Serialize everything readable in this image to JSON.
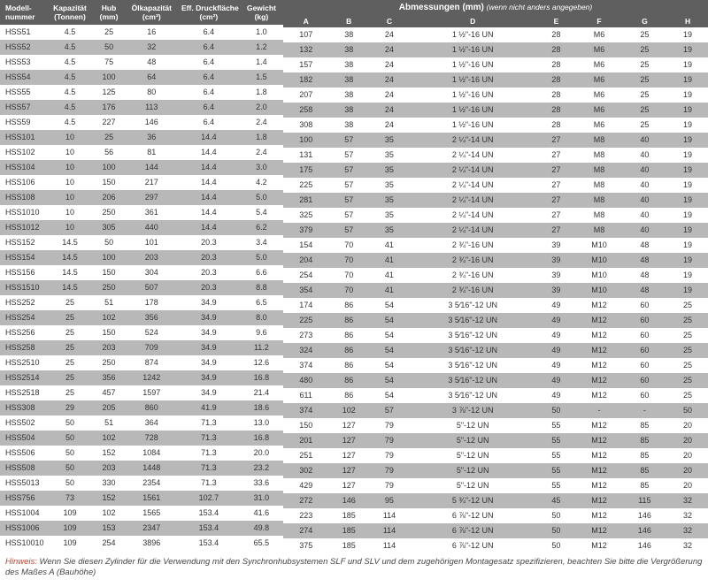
{
  "left": {
    "headers": [
      "Modell-\nnummer",
      "Kapazität\n(Tonnen)",
      "Hub\n(mm)",
      "Ölkapazität\n(cm³)",
      "Eff. Druckfläche\n(cm²)",
      "Gewicht\n(kg)"
    ]
  },
  "right": {
    "group_title": "Abmessungen (mm)",
    "group_note": "(wenn nicht anders angegeben)",
    "headers": [
      "A",
      "B",
      "C",
      "D",
      "E",
      "F",
      "G",
      "H"
    ]
  },
  "rows_left": [
    [
      "HSS51",
      "4.5",
      "25",
      "16",
      "6.4",
      "1.0"
    ],
    [
      "HSS52",
      "4.5",
      "50",
      "32",
      "6.4",
      "1.2"
    ],
    [
      "HSS53",
      "4.5",
      "75",
      "48",
      "6.4",
      "1.4"
    ],
    [
      "HSS54",
      "4.5",
      "100",
      "64",
      "6.4",
      "1.5"
    ],
    [
      "HSS55",
      "4.5",
      "125",
      "80",
      "6.4",
      "1.8"
    ],
    [
      "HSS57",
      "4.5",
      "176",
      "113",
      "6.4",
      "2.0"
    ],
    [
      "HSS59",
      "4.5",
      "227",
      "146",
      "6.4",
      "2.4"
    ],
    [
      "HSS101",
      "10",
      "25",
      "36",
      "14.4",
      "1.8"
    ],
    [
      "HSS102",
      "10",
      "56",
      "81",
      "14.4",
      "2.4"
    ],
    [
      "HSS104",
      "10",
      "100",
      "144",
      "14.4",
      "3.0"
    ],
    [
      "HSS106",
      "10",
      "150",
      "217",
      "14.4",
      "4.2"
    ],
    [
      "HSS108",
      "10",
      "206",
      "297",
      "14.4",
      "5.0"
    ],
    [
      "HSS1010",
      "10",
      "250",
      "361",
      "14.4",
      "5.4"
    ],
    [
      "HSS1012",
      "10",
      "305",
      "440",
      "14.4",
      "6.2"
    ],
    [
      "HSS152",
      "14.5",
      "50",
      "101",
      "20.3",
      "3.4"
    ],
    [
      "HSS154",
      "14.5",
      "100",
      "203",
      "20.3",
      "5.0"
    ],
    [
      "HSS156",
      "14.5",
      "150",
      "304",
      "20.3",
      "6.6"
    ],
    [
      "HSS1510",
      "14.5",
      "250",
      "507",
      "20.3",
      "8.8"
    ],
    [
      "HSS252",
      "25",
      "51",
      "178",
      "34.9",
      "6.5"
    ],
    [
      "HSS254",
      "25",
      "102",
      "356",
      "34.9",
      "8.0"
    ],
    [
      "HSS256",
      "25",
      "150",
      "524",
      "34.9",
      "9.6"
    ],
    [
      "HSS258",
      "25",
      "203",
      "709",
      "34.9",
      "11.2"
    ],
    [
      "HSS2510",
      "25",
      "250",
      "874",
      "34.9",
      "12.6"
    ],
    [
      "HSS2514",
      "25",
      "356",
      "1242",
      "34.9",
      "16.8"
    ],
    [
      "HSS2518",
      "25",
      "457",
      "1597",
      "34.9",
      "21.4"
    ],
    [
      "HSS308",
      "29",
      "205",
      "860",
      "41.9",
      "18.6"
    ],
    [
      "HSS502",
      "50",
      "51",
      "364",
      "71.3",
      "13.0"
    ],
    [
      "HSS504",
      "50",
      "102",
      "728",
      "71.3",
      "16.8"
    ],
    [
      "HSS506",
      "50",
      "152",
      "1084",
      "71.3",
      "20.0"
    ],
    [
      "HSS508",
      "50",
      "203",
      "1448",
      "71.3",
      "23.2"
    ],
    [
      "HSS5013",
      "50",
      "330",
      "2354",
      "71.3",
      "33.6"
    ],
    [
      "HSS756",
      "73",
      "152",
      "1561",
      "102.7",
      "31.0"
    ],
    [
      "HSS1004",
      "109",
      "102",
      "1565",
      "153.4",
      "41.6"
    ],
    [
      "HSS1006",
      "109",
      "153",
      "2347",
      "153.4",
      "49.8"
    ],
    [
      "HSS10010",
      "109",
      "254",
      "3896",
      "153.4",
      "65.5"
    ]
  ],
  "rows_right": [
    [
      "107",
      "38",
      "24",
      "1 ½\"-16 UN",
      "28",
      "M6",
      "25",
      "19"
    ],
    [
      "132",
      "38",
      "24",
      "1 ½\"-16 UN",
      "28",
      "M6",
      "25",
      "19"
    ],
    [
      "157",
      "38",
      "24",
      "1 ½\"-16 UN",
      "28",
      "M6",
      "25",
      "19"
    ],
    [
      "182",
      "38",
      "24",
      "1 ½\"-16 UN",
      "28",
      "M6",
      "25",
      "19"
    ],
    [
      "207",
      "38",
      "24",
      "1 ½\"-16 UN",
      "28",
      "M6",
      "25",
      "19"
    ],
    [
      "258",
      "38",
      "24",
      "1 ½\"-16 UN",
      "28",
      "M6",
      "25",
      "19"
    ],
    [
      "308",
      "38",
      "24",
      "1 ½\"-16 UN",
      "28",
      "M6",
      "25",
      "19"
    ],
    [
      "100",
      "57",
      "35",
      "2 ¼\"-14 UN",
      "27",
      "M8",
      "40",
      "19"
    ],
    [
      "131",
      "57",
      "35",
      "2 ¼\"-14 UN",
      "27",
      "M8",
      "40",
      "19"
    ],
    [
      "175",
      "57",
      "35",
      "2 ¼\"-14 UN",
      "27",
      "M8",
      "40",
      "19"
    ],
    [
      "225",
      "57",
      "35",
      "2 ¼\"-14 UN",
      "27",
      "M8",
      "40",
      "19"
    ],
    [
      "281",
      "57",
      "35",
      "2 ¼\"-14 UN",
      "27",
      "M8",
      "40",
      "19"
    ],
    [
      "325",
      "57",
      "35",
      "2 ¼\"-14 UN",
      "27",
      "M8",
      "40",
      "19"
    ],
    [
      "379",
      "57",
      "35",
      "2 ¼\"-14 UN",
      "27",
      "M8",
      "40",
      "19"
    ],
    [
      "154",
      "70",
      "41",
      "2 ¾\"-16 UN",
      "39",
      "M10",
      "48",
      "19"
    ],
    [
      "204",
      "70",
      "41",
      "2 ¾\"-16 UN",
      "39",
      "M10",
      "48",
      "19"
    ],
    [
      "254",
      "70",
      "41",
      "2 ¾\"-16 UN",
      "39",
      "M10",
      "48",
      "19"
    ],
    [
      "354",
      "70",
      "41",
      "2 ¾\"-16 UN",
      "39",
      "M10",
      "48",
      "19"
    ],
    [
      "174",
      "86",
      "54",
      "3 5⁄16\"-12 UN",
      "49",
      "M12",
      "60",
      "25"
    ],
    [
      "225",
      "86",
      "54",
      "3 5⁄16\"-12 UN",
      "49",
      "M12",
      "60",
      "25"
    ],
    [
      "273",
      "86",
      "54",
      "3 5⁄16\"-12 UN",
      "49",
      "M12",
      "60",
      "25"
    ],
    [
      "324",
      "86",
      "54",
      "3 5⁄16\"-12 UN",
      "49",
      "M12",
      "60",
      "25"
    ],
    [
      "374",
      "86",
      "54",
      "3 5⁄16\"-12 UN",
      "49",
      "M12",
      "60",
      "25"
    ],
    [
      "480",
      "86",
      "54",
      "3 5⁄16\"-12 UN",
      "49",
      "M12",
      "60",
      "25"
    ],
    [
      "611",
      "86",
      "54",
      "3 5⁄16\"-12 UN",
      "49",
      "M12",
      "60",
      "25"
    ],
    [
      "374",
      "102",
      "57",
      "3 ⅞\"-12 UN",
      "50",
      "-",
      "-",
      "50"
    ],
    [
      "150",
      "127",
      "79",
      "5\"-12 UN",
      "55",
      "M12",
      "85",
      "20"
    ],
    [
      "201",
      "127",
      "79",
      "5\"-12 UN",
      "55",
      "M12",
      "85",
      "20"
    ],
    [
      "251",
      "127",
      "79",
      "5\"-12 UN",
      "55",
      "M12",
      "85",
      "20"
    ],
    [
      "302",
      "127",
      "79",
      "5\"-12 UN",
      "55",
      "M12",
      "85",
      "20"
    ],
    [
      "429",
      "127",
      "79",
      "5\"-12 UN",
      "55",
      "M12",
      "85",
      "20"
    ],
    [
      "272",
      "146",
      "95",
      "5 ¾\"-12 UN",
      "45",
      "M12",
      "115",
      "32"
    ],
    [
      "223",
      "185",
      "114",
      "6 ⅞\"-12 UN",
      "50",
      "M12",
      "146",
      "32"
    ],
    [
      "274",
      "185",
      "114",
      "6 ⅞\"-12 UN",
      "50",
      "M12",
      "146",
      "32"
    ],
    [
      "375",
      "185",
      "114",
      "6 ⅞\"-12 UN",
      "50",
      "M12",
      "146",
      "32"
    ]
  ],
  "hint": {
    "label": "Hinweis:",
    "text": "Wenn Sie diesen Zylinder für die Verwendung mit den Synchronhubsystemen SLF und SLV und dem zugehörigen Montagesatz spezifizieren, beachten Sie bitte die Vergrößerung des Maßes A (Bauhöhe)"
  },
  "colors": {
    "header_bg": "#5f5f5f",
    "header_fg": "#ffffff",
    "row_odd_bg": "#b8b8b8",
    "row_even_bg": "#ffffff",
    "hint_label": "#c04030"
  }
}
